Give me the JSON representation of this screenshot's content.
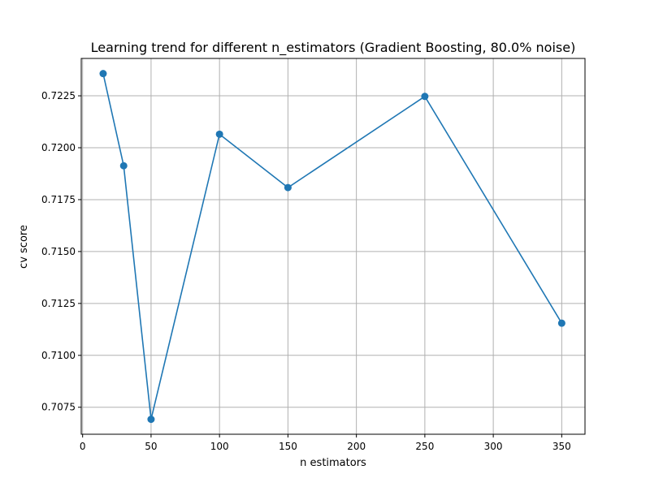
{
  "chart_data": {
    "type": "line",
    "title": "Learning trend for different n_estimators (Gradient Boosting, 80.0% noise)",
    "xlabel": "n estimators",
    "ylabel": "cv score",
    "x": [
      15,
      30,
      50,
      100,
      150,
      250,
      350
    ],
    "series": [
      {
        "values": [
          0.72357,
          0.71913,
          0.70692,
          0.72065,
          0.71808,
          0.72247,
          0.71155
        ],
        "color": "#1f77b4",
        "marker": "circle"
      }
    ],
    "xlim": [
      -1,
      367
    ],
    "ylim": [
      0.7062,
      0.7243
    ],
    "xticks": [
      0,
      50,
      100,
      150,
      200,
      250,
      300,
      350
    ],
    "xtick_labels": [
      "0",
      "50",
      "100",
      "150",
      "200",
      "250",
      "300",
      "350"
    ],
    "yticks": [
      0.7075,
      0.71,
      0.7125,
      0.715,
      0.7175,
      0.72,
      0.7225
    ],
    "ytick_labels": [
      "0.7075",
      "0.7100",
      "0.7125",
      "0.7150",
      "0.7175",
      "0.7200",
      "0.7225"
    ],
    "grid": true,
    "colors": {
      "line": "#1f77b4",
      "grid": "#b0b0b0",
      "axes": "#000000"
    }
  }
}
